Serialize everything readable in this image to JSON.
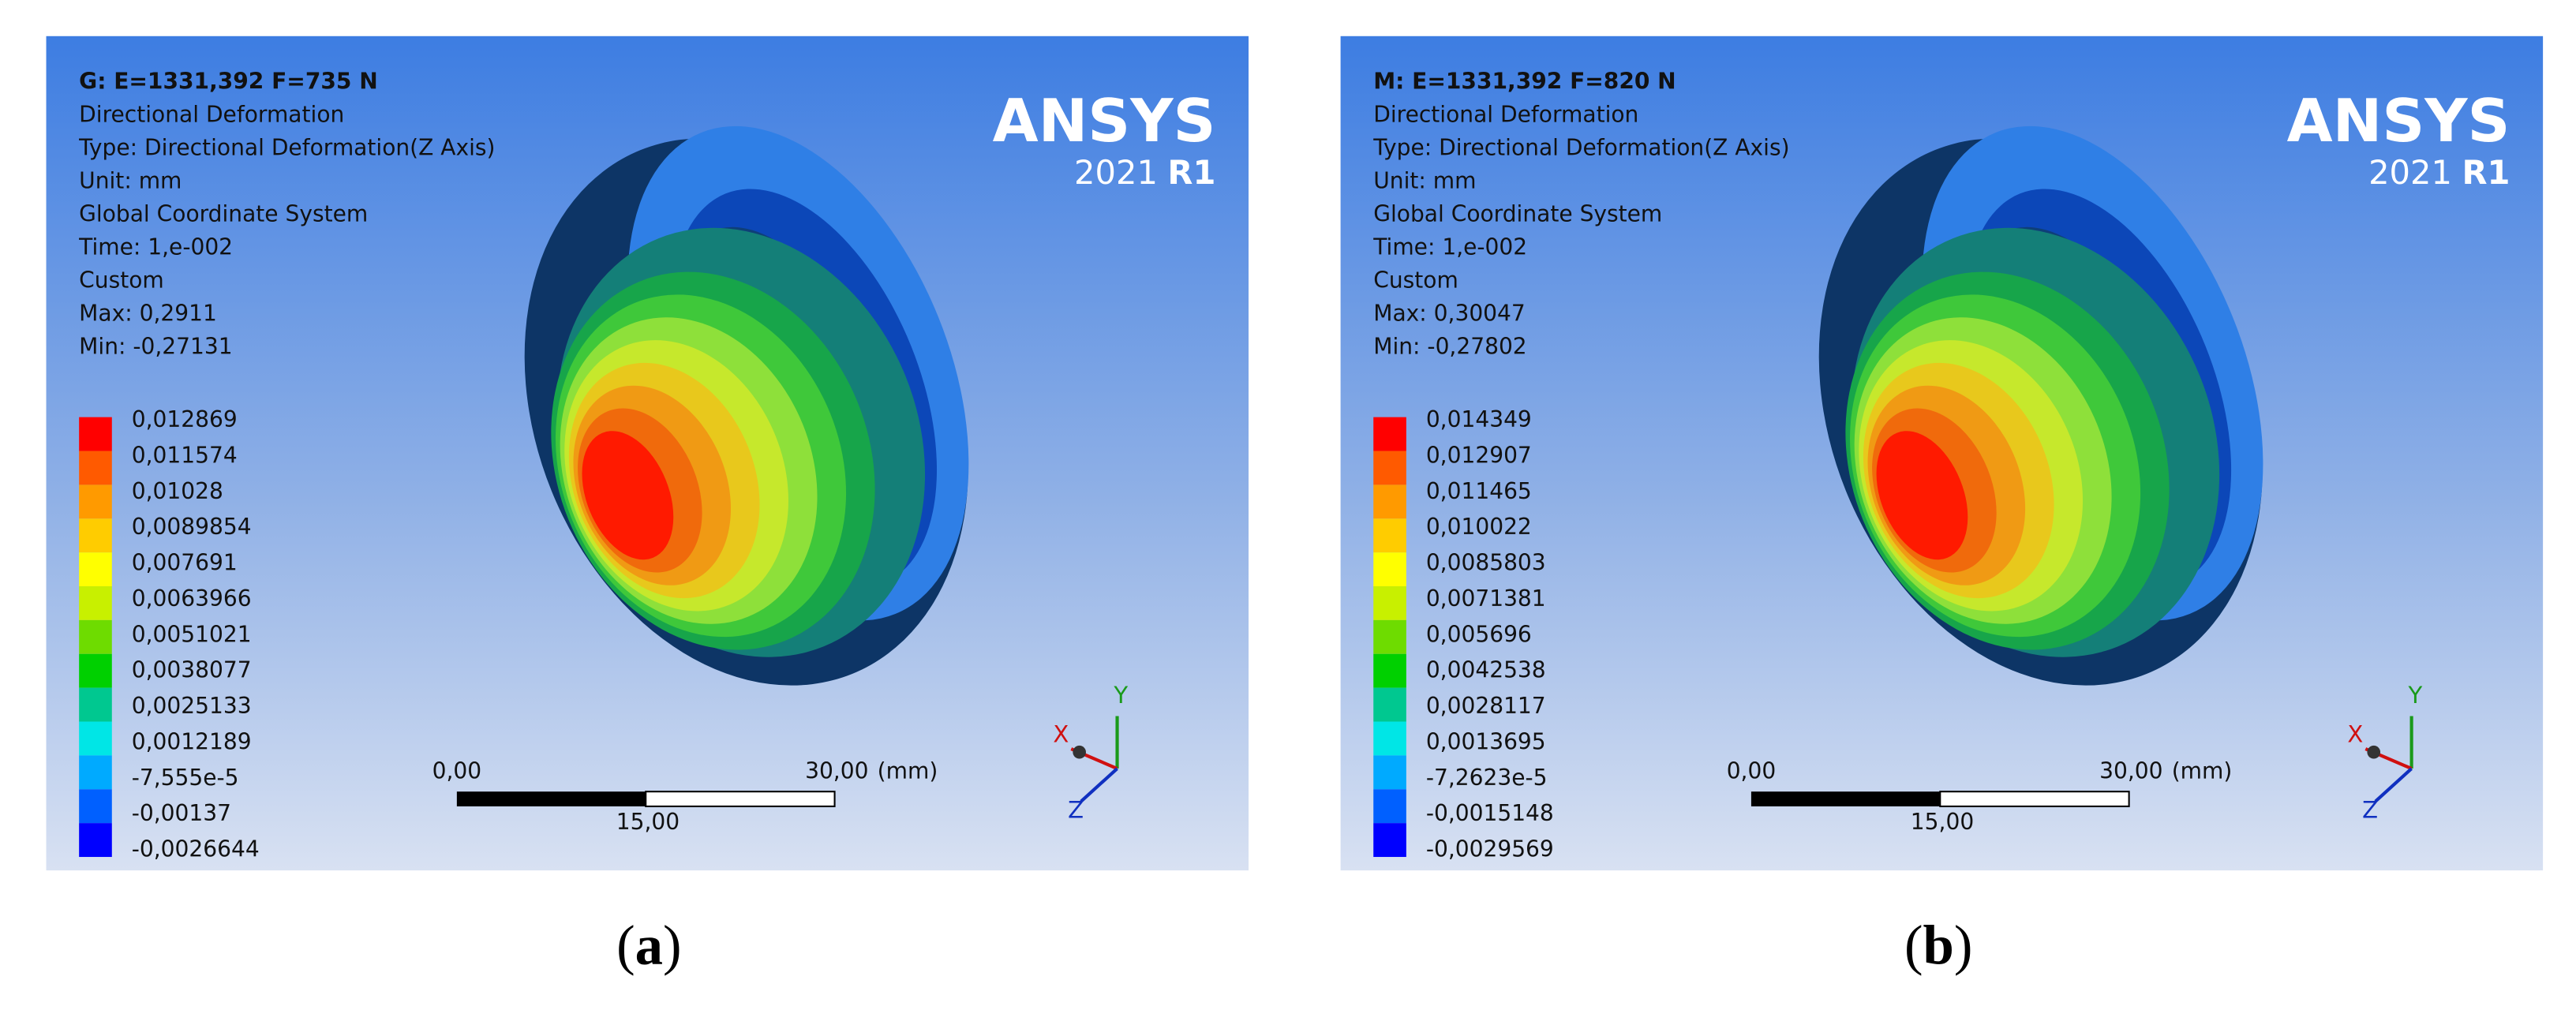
{
  "panels": [
    {
      "header": [
        "G: E=1331,392 F=735 N",
        "Directional Deformation",
        "Type: Directional Deformation(Z Axis)",
        "Unit: mm",
        "Global Coordinate System",
        "Time: 1,e-002",
        "Custom",
        "Max: 0,2911",
        "Min: -0,27131"
      ],
      "legend": [
        "0,012869",
        "0,011574",
        "0,01028",
        "0,0089854",
        "0,007691",
        "0,0063966",
        "0,0051021",
        "0,0038077",
        "0,0025133",
        "0,0012189",
        "-7,555e-5",
        "-0,00137",
        "-0,0026644"
      ],
      "logo": {
        "name": "ANSYS",
        "version": "2021",
        "release": "R1"
      },
      "scale": {
        "left": "0,00",
        "right": "30,00",
        "unit": "(mm)",
        "middle": "15,00"
      },
      "axes": {
        "x": "X",
        "y": "Y",
        "z": "Z"
      },
      "caption": {
        "open": "(",
        "letter": "a",
        "close": ")"
      }
    },
    {
      "header": [
        "M: E=1331,392 F=820 N",
        "Directional Deformation",
        "Type: Directional Deformation(Z Axis)",
        "Unit: mm",
        "Global Coordinate System",
        "Time: 1,e-002",
        "Custom",
        "Max: 0,30047",
        "Min: -0,27802"
      ],
      "legend": [
        "0,014349",
        "0,012907",
        "0,011465",
        "0,010022",
        "0,0085803",
        "0,0071381",
        "0,005696",
        "0,0042538",
        "0,0028117",
        "0,0013695",
        "-7,2623e-5",
        "-0,0015148",
        "-0,0029569"
      ],
      "logo": {
        "name": "ANSYS",
        "version": "2021",
        "release": "R1"
      },
      "scale": {
        "left": "0,00",
        "right": "30,00",
        "unit": "(mm)",
        "middle": "15,00"
      },
      "axes": {
        "x": "X",
        "y": "Y",
        "z": "Z"
      },
      "caption": {
        "open": "(",
        "letter": "b",
        "close": ")"
      }
    }
  ]
}
